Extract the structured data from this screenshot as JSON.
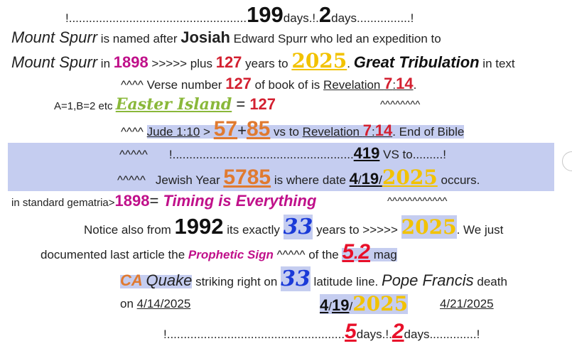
{
  "line1": {
    "a": "!.....................................................",
    "n1": "199",
    "b": "days.!.",
    "n2": "2",
    "c": "days................!"
  },
  "line2": {
    "a": "Mount Spurr",
    "b": " is named after ",
    "c": "Josiah",
    "d": " Edward Spurr who led an expedition to"
  },
  "line3": {
    "a": "Mount Spurr",
    "b": "  in ",
    "year": "1898",
    "c": " >>>>> plus ",
    "n": "127",
    "d": " years to ",
    "y2": "2025",
    "e": ". ",
    "gt": "Great Tribulation",
    "f": " in text"
  },
  "line4": {
    "a": "^^^^ Verse number ",
    "n": "127",
    "b": " of book of is ",
    "rev": "Revelation ",
    "ch": "7",
    "col": ":",
    "vs": "14",
    "dot": "."
  },
  "line5": {
    "a": "A=1,B=2 etc ",
    "ei": "Easter Island",
    "eq": " = ",
    "n": "127",
    "carets": "^^^^^^^^"
  },
  "line6": {
    "a": "^^^^   ",
    "jude": "Jude 1:10",
    "b": " > ",
    "n1": "57",
    "plus": "+",
    "n2": "85",
    "c": " vs to ",
    "rev": "Revelation",
    "sp": " ",
    "ch": "7",
    "col": ":",
    "vs": "14",
    "d": ".   End of Bible"
  },
  "line7": {
    "a": "^^^^^",
    "b": "!......................................................",
    "n": "419",
    "c": " VS to.........!"
  },
  "line8": {
    "a": "^^^^^",
    "b": "Jewish Year ",
    "n": "5785",
    "c": " is where date ",
    "d1": "4",
    "s1": "/",
    "d2": "19",
    "s2": "/",
    "y": "2025",
    "e": " occurs."
  },
  "line9": {
    "a": "in standard gematria>",
    "n": "1898",
    "eq": "= ",
    "te": "Timing is Everything",
    "carets": "^^^^^^^^^^^^"
  },
  "line10": {
    "a": "Notice also from ",
    "n": "1992",
    "b": " its exactly ",
    "n33": "33",
    "c": " years to >>>>> ",
    "y": "2025",
    "d": ". We just"
  },
  "line11": {
    "a": "documented last article the ",
    "ps": "Prophetic Sign",
    "b": " ^^^^^ of the ",
    "n1": "5",
    "dot": ".",
    "n2": "2",
    "c": " mag"
  },
  "line12": {
    "ca": "CA",
    "sp": " ",
    "q": "Quake",
    "b": " striking right on ",
    "n33": "33",
    "c": " latitude line.  ",
    "pf": "Pope Francis",
    "d": " death"
  },
  "line13": {
    "a": "on ",
    "d1": "4/14/2025",
    "d2a": "4",
    "s1": "/",
    "d2b": "19",
    "s2": "/",
    "d2y": "2025",
    "d3": "4/21/2025"
  },
  "line14": {
    "a": "!.....................................................",
    "n1": "5",
    "b": "days.!.",
    "n2": "2",
    "c": "days..............!"
  }
}
